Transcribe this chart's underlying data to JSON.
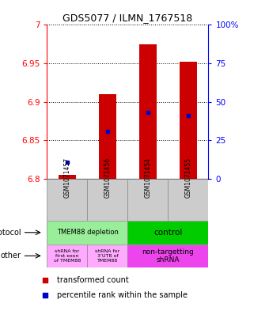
{
  "title": "GDS5077 / ILMN_1767518",
  "samples": [
    "GSM1071457",
    "GSM1071456",
    "GSM1071454",
    "GSM1071455"
  ],
  "bar_values": [
    6.805,
    6.91,
    6.975,
    6.952
  ],
  "bar_bottom": 6.8,
  "percentile_values": [
    6.822,
    6.862,
    6.886,
    6.882
  ],
  "ylim": [
    6.8,
    7.0
  ],
  "yticks": [
    6.8,
    6.85,
    6.9,
    6.95,
    7.0
  ],
  "ytick_labels": [
    "6.8",
    "6.85",
    "6.9",
    "6.95",
    "7"
  ],
  "right_yticks_pct": [
    0,
    25,
    50,
    75,
    100
  ],
  "bar_color": "#cc0000",
  "dot_color": "#0000cc",
  "protocol_depletion_color": "#99ee99",
  "protocol_control_color": "#00cc00",
  "other_light_color": "#ffaaff",
  "other_bright_color": "#ee44ee",
  "gray_color": "#cccccc",
  "legend_red_color": "#cc0000",
  "legend_blue_color": "#0000cc"
}
